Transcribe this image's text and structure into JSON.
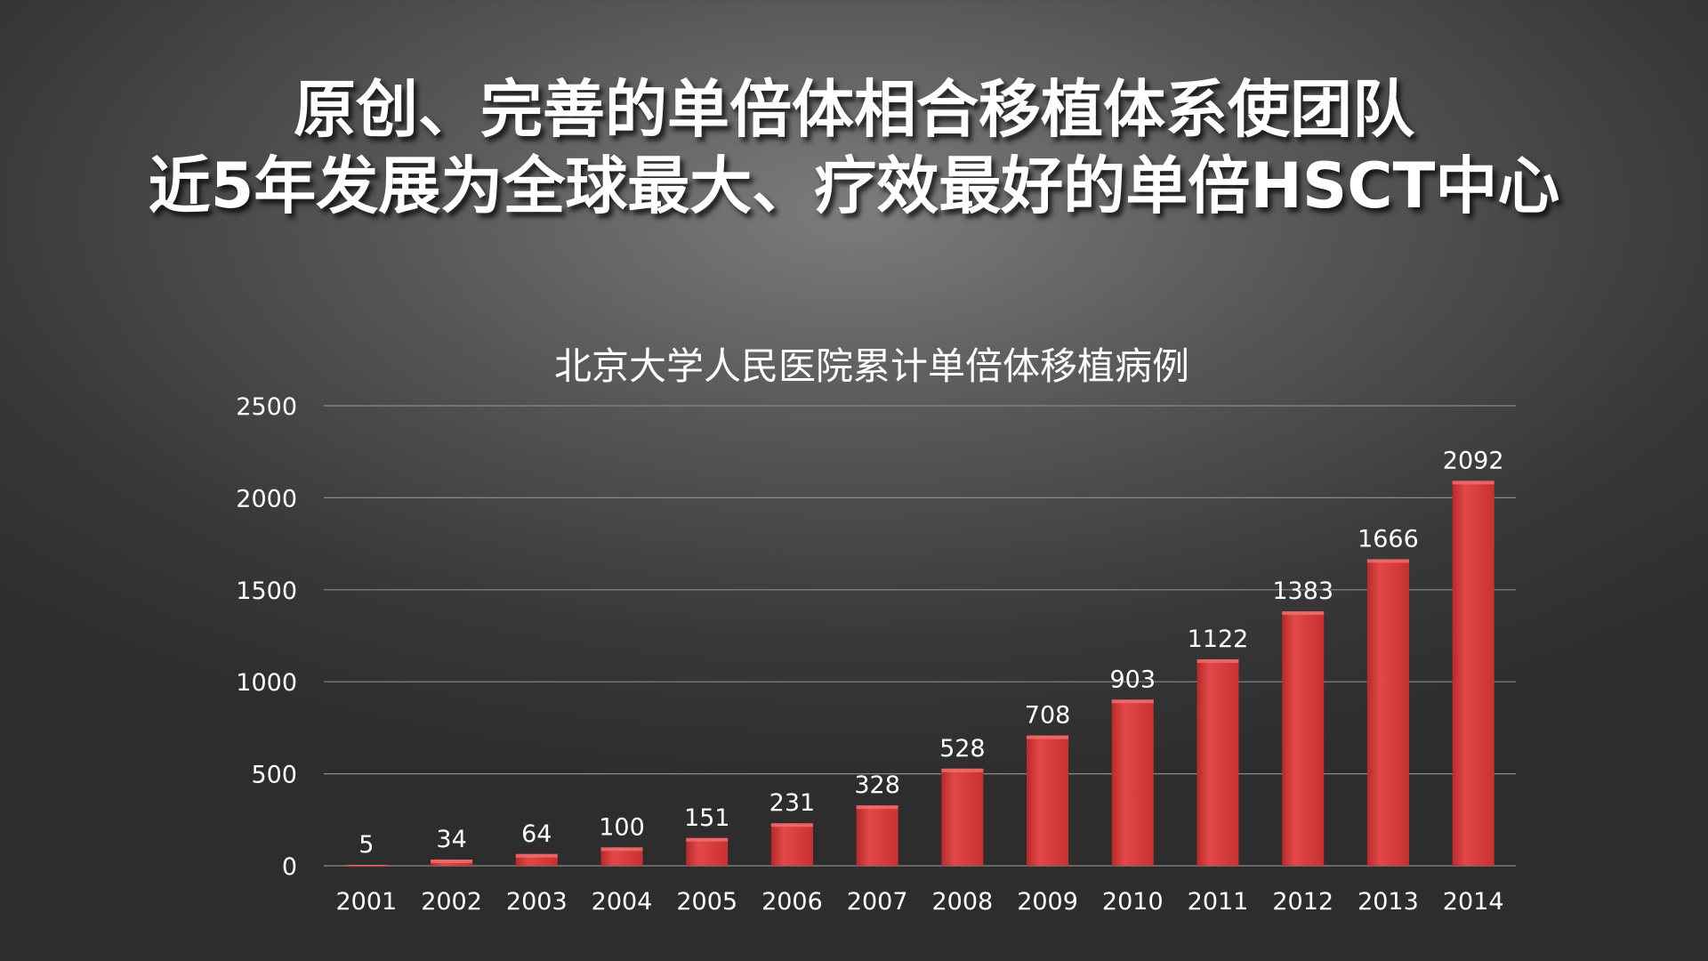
{
  "slide": {
    "headline_line1": "原创、完善的单倍体相合移植体系使团队",
    "headline_line2": "近5年发展为全球最大、疗效最好的单倍HSCT中心"
  },
  "chart_data": {
    "type": "bar",
    "title": "北京大学人民医院累计单倍体移植病例",
    "categories": [
      "2001",
      "2002",
      "2003",
      "2004",
      "2005",
      "2006",
      "2007",
      "2008",
      "2009",
      "2010",
      "2011",
      "2012",
      "2013",
      "2014"
    ],
    "values": [
      5,
      34,
      64,
      100,
      151,
      231,
      328,
      528,
      708,
      903,
      1122,
      1383,
      1666,
      2092
    ],
    "yticks": [
      0,
      500,
      1000,
      1500,
      2000,
      2500
    ],
    "ylim": [
      0,
      2500
    ],
    "grid": true,
    "data_labels": true,
    "legend": "none",
    "colors": {
      "bar": "#d63a3a",
      "bar_highlight": "#e85555",
      "bar_shadow": "#a82020",
      "grid": "#8a8a8a",
      "text": "#ffffff"
    }
  }
}
